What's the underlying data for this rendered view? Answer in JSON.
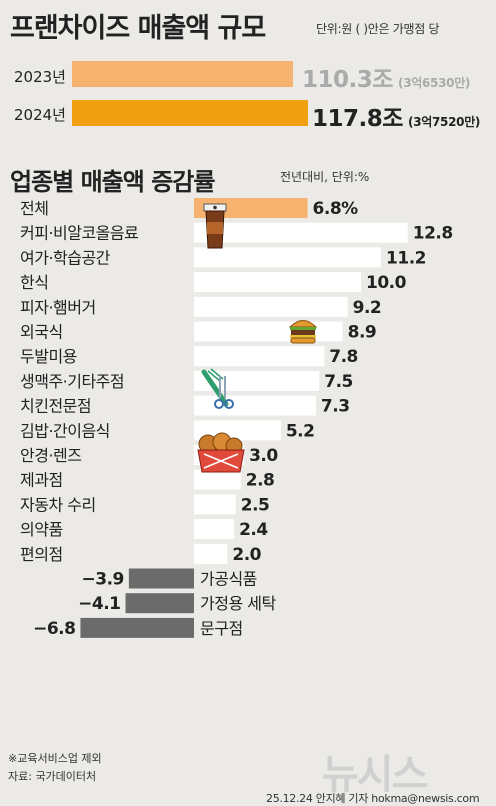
{
  "title": "프랜차이즈 매출액 규모",
  "unit_note": "단위:원 ( )안은 가맹점 당",
  "yearly": [
    {
      "year": "2023년",
      "value": 110.3,
      "label": "110.3조",
      "sub": "(3억6530만)",
      "color": "#f5b36f"
    },
    {
      "year": "2024년",
      "value": 117.8,
      "label": "117.8조",
      "sub": "(3억7520만)",
      "color": "#f0a010"
    }
  ],
  "section_title": "업종별 매출액 증감률",
  "section_unit": "전년대비, 단위:%",
  "chart_data": {
    "type": "bar",
    "title": "업종별 매출액 증감률",
    "categories": [
      "전체",
      "커피·비알코올음료",
      "여가·학습공간",
      "한식",
      "피자·햄버거",
      "외국식",
      "두발미용",
      "생맥주·기타주점",
      "치킨전문점",
      "김밥·간이음식",
      "안경·렌즈",
      "제과점",
      "자동차 수리",
      "의약품",
      "편의점",
      "가공식품",
      "가정용 세탁",
      "문구점"
    ],
    "values": [
      6.8,
      12.8,
      11.2,
      10.0,
      9.2,
      8.9,
      7.8,
      7.5,
      7.3,
      5.2,
      3.0,
      2.8,
      2.5,
      2.4,
      2.0,
      -3.9,
      -4.1,
      -6.8
    ],
    "value_labels": [
      "6.8%",
      "12.8",
      "11.2",
      "10.0",
      "9.2",
      "8.9",
      "7.8",
      "7.5",
      "7.3",
      "5.2",
      "3.0",
      "2.8",
      "2.5",
      "2.4",
      "2.0",
      "−3.9",
      "−4.1",
      "−6.8"
    ],
    "colors": {
      "total": "#f5b36f",
      "positive": "#ffffff",
      "negative": "#6b6b6b"
    },
    "icons": [
      "coffee-cup-icon",
      "burger-icon",
      "comb-scissors-icon",
      "fried-chicken-icon"
    ]
  },
  "footnote": "※교육서비스업 제외",
  "source": "자료: 국가데이터처",
  "credit": "25.12.24 안지혜 기자 hokma@newsis.com",
  "watermark": "뉴시스"
}
